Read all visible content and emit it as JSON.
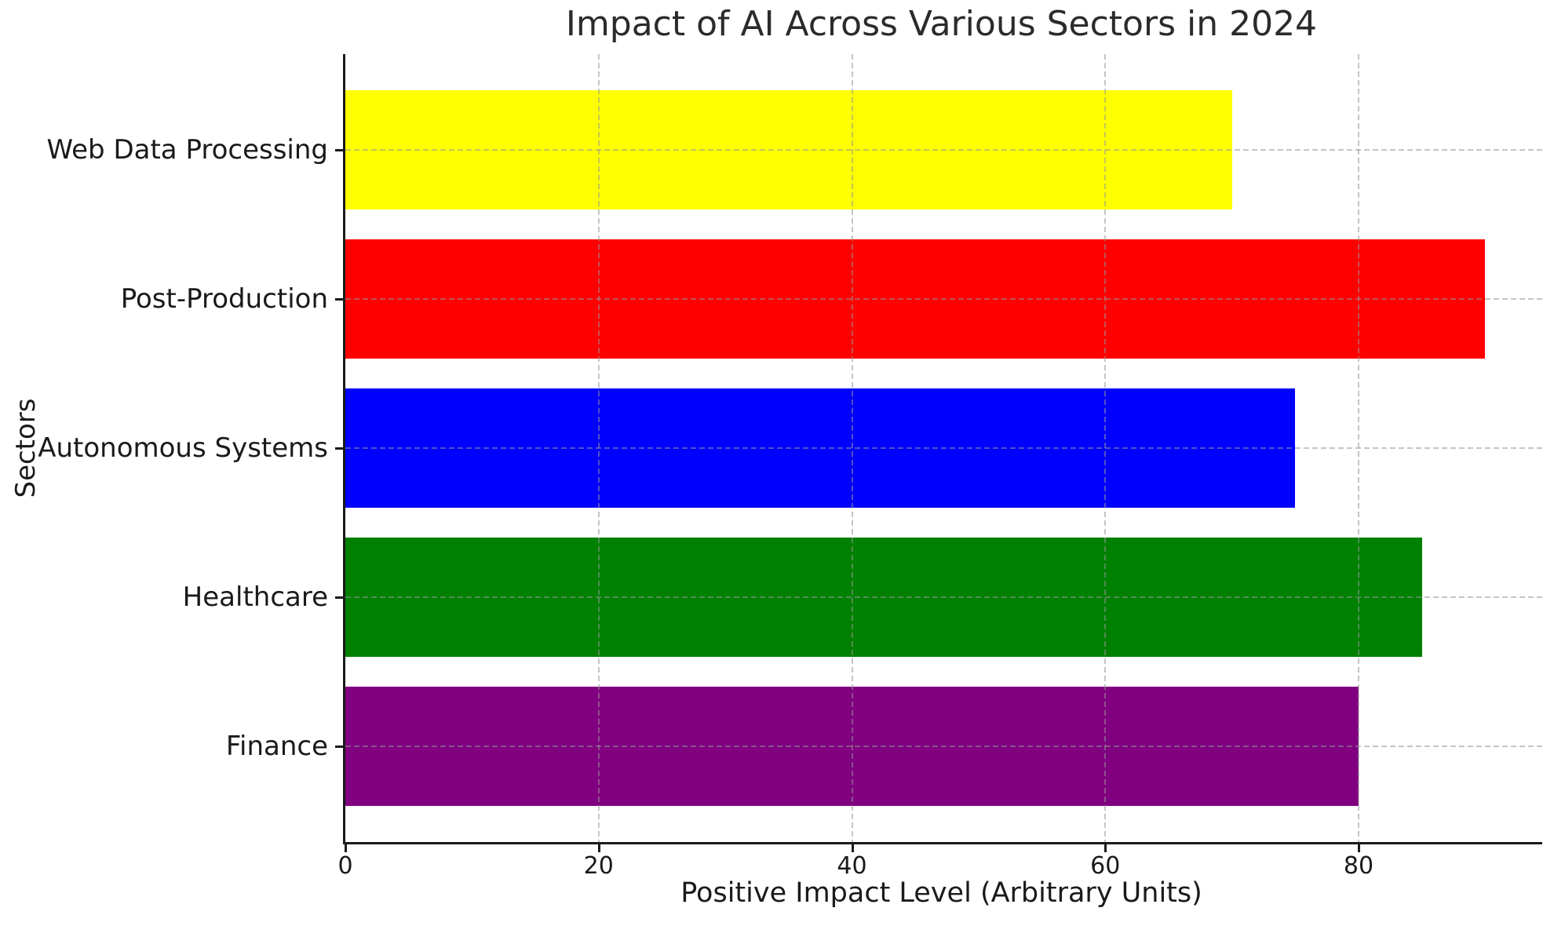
{
  "chart_data": {
    "type": "bar",
    "orientation": "horizontal",
    "title": "Impact of AI Across Various Sectors in 2024",
    "xlabel": "Positive Impact Level (Arbitrary Units)",
    "ylabel": "Sectors",
    "categories": [
      "Web Data Processing",
      "Post-Production",
      "Autonomous Systems",
      "Healthcare",
      "Finance"
    ],
    "values": [
      70,
      90,
      75,
      85,
      80
    ],
    "bar_colors": [
      "#ffff00",
      "#ff0000",
      "#0000ff",
      "#008000",
      "#800080"
    ],
    "xticks": [
      0,
      20,
      40,
      60,
      80
    ],
    "xlim": [
      0,
      94.5
    ],
    "grid": "dashed",
    "grid_on_top_of_bars": true,
    "legend": "none"
  }
}
